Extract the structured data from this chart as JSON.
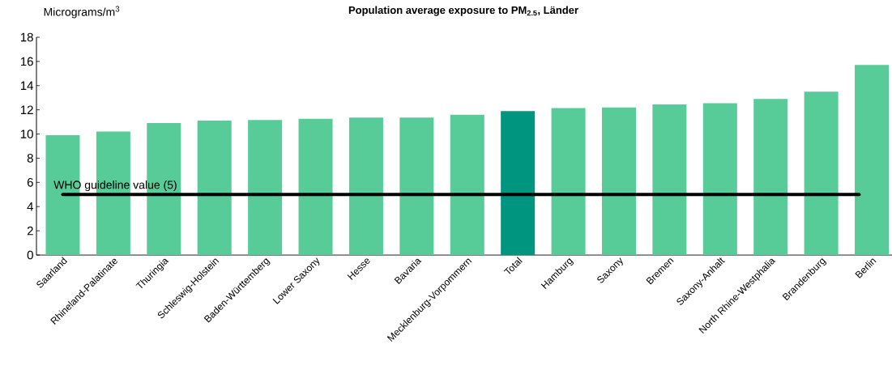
{
  "chart_data": {
    "type": "bar",
    "title": "Population average exposure to PM$_{2.5}$, Länder",
    "ylabel": "Micrograms/m$^{3}$",
    "categories": [
      "Saarland",
      "Rhineland-Palatinate",
      "Thuringia",
      "Schleswig-Holstein",
      "Baden-Württemberg",
      "Lower Saxony",
      "Hesse",
      "Bavaria",
      "Mecklenburg-Vorpommern",
      "Total",
      "Hamburg",
      "Saxony",
      "Bremen",
      "Saxony-Anhalt",
      "North Rhine-Westphalia",
      "Brandenburg",
      "Berlin"
    ],
    "values": [
      9.9,
      10.2,
      10.9,
      11.1,
      11.15,
      11.25,
      11.35,
      11.35,
      11.6,
      11.9,
      12.15,
      12.2,
      12.45,
      12.55,
      12.9,
      13.5,
      15.7
    ],
    "colors": [
      "#57cc99",
      "#57cc99",
      "#57cc99",
      "#57cc99",
      "#57cc99",
      "#57cc99",
      "#57cc99",
      "#57cc99",
      "#57cc99",
      "#00957e",
      "#57cc99",
      "#57cc99",
      "#57cc99",
      "#57cc99",
      "#57cc99",
      "#57cc99",
      "#57cc99"
    ],
    "ylim": [
      0,
      18
    ],
    "yticks": [
      0,
      2,
      4,
      6,
      8,
      10,
      12,
      14,
      16,
      18
    ],
    "ref_lines": [
      {
        "axis": "y",
        "value": 5,
        "label": "WHO guideline value (5)",
        "color": "#000000"
      }
    ],
    "grid": false
  }
}
